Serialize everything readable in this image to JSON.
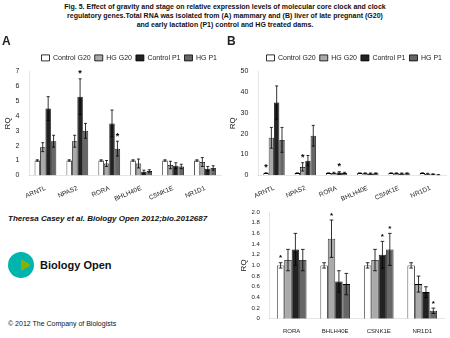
{
  "title": [
    "Fig. 5. Effect of gravity and stage on relative expression levels of molecular core clock and clock",
    "regulatory genes.Total RNA was isolated from (A) mammary and (B) liver of late pregnant (G20)",
    "and early lactation (P1) control and HG treated dams."
  ],
  "annotations": [
    "Theresa Casey et al. Biology Open 2012;bio.2012687",
    "Biology Open",
    "© 2012 The Company of Biologists"
  ],
  "chart_data": [
    {
      "type": "bar",
      "title": "A",
      "ylabel": "RQ",
      "categories": [
        "ARNTL",
        "NPAS2",
        "RORA",
        "BHLH40E",
        "CSNK1E",
        "NR1D1"
      ],
      "ylim": [
        0,
        7
      ],
      "yticks": [
        0,
        1,
        2,
        3,
        4,
        5,
        6,
        7
      ],
      "grid": false,
      "legend": "upper right",
      "series": [
        {
          "name": "Control G20",
          "color": "#ffffff",
          "values": [
            1.0,
            1.0,
            1.0,
            1.0,
            1.0,
            1.0
          ],
          "errors": [
            0.05,
            0.05,
            0.05,
            0.05,
            0.05,
            0.05
          ]
        },
        {
          "name": "HG G20",
          "color": "#aaaaaa",
          "values": [
            1.9,
            2.3,
            0.8,
            0.8,
            0.7,
            0.9
          ],
          "errors": [
            0.3,
            0.4,
            0.2,
            0.3,
            0.25,
            0.3
          ]
        },
        {
          "name": "Control P1",
          "color": "#222222",
          "values": [
            4.5,
            5.3,
            3.5,
            0.25,
            0.65,
            0.45
          ],
          "errors": [
            0.8,
            1.2,
            0.9,
            0.1,
            0.2,
            0.15
          ],
          "stars": [
            null,
            "*",
            null,
            null,
            null,
            null
          ]
        },
        {
          "name": "HG P1",
          "color": "#666666",
          "values": [
            2.3,
            3.0,
            1.8,
            0.3,
            0.6,
            0.5
          ],
          "errors": [
            0.4,
            0.5,
            0.5,
            0.08,
            0.15,
            0.15
          ],
          "stars": [
            null,
            null,
            "*",
            null,
            null,
            null
          ]
        }
      ]
    },
    {
      "type": "bar",
      "title": "B",
      "ylabel": "RQ",
      "categories": [
        "ARNTL",
        "NPAS2",
        "RORA",
        "BHLH40E",
        "CSNK1E",
        "NR1D1"
      ],
      "ylim": [
        0,
        50
      ],
      "yticks": [
        0,
        10,
        20,
        30,
        40,
        50
      ],
      "grid": false,
      "legend": "upper right",
      "series": [
        {
          "name": "Control G20",
          "color": "#ffffff",
          "values": [
            1.0,
            1.0,
            1.0,
            1.0,
            1.0,
            1.0
          ],
          "errors": [
            0.05,
            0.05,
            0.05,
            0.05,
            0.05,
            0.05
          ],
          "stars": [
            "*",
            null,
            null,
            null,
            null,
            null
          ]
        },
        {
          "name": "HG G20",
          "color": "#aaaaaa",
          "values": [
            18.0,
            4.0,
            1.1,
            0.9,
            0.9,
            0.7
          ],
          "errors": [
            5.0,
            2.0,
            0.3,
            0.2,
            0.2,
            0.2
          ],
          "stars": [
            null,
            "*",
            null,
            null,
            null,
            null
          ]
        },
        {
          "name": "Control P1",
          "color": "#222222",
          "values": [
            35.0,
            7.0,
            1.3,
            0.8,
            0.85,
            0.5
          ],
          "errors": [
            8.0,
            2.5,
            0.4,
            0.25,
            0.2,
            0.15
          ],
          "stars": [
            null,
            null,
            "*",
            null,
            null,
            null
          ]
        },
        {
          "name": "HG P1",
          "color": "#666666",
          "values": [
            17.0,
            19.0,
            1.1,
            0.9,
            0.9,
            0.15
          ],
          "errors": [
            6.0,
            5.0,
            0.3,
            0.2,
            0.2,
            0.05
          ]
        }
      ]
    },
    {
      "type": "bar",
      "ylabel": "RQ",
      "categories": [
        "RORA",
        "BHLH40E",
        "CSNK1E",
        "NR1D1"
      ],
      "ylim": [
        0,
        2.0
      ],
      "yticks": [
        0,
        0.2,
        0.4,
        0.6,
        0.8,
        {
          "value": 1.0,
          "label": "1.0"
        },
        1.2,
        1.4,
        1.6,
        1.8,
        {
          "value": 2.0,
          "label": "2.0"
        }
      ],
      "grid": false,
      "series": [
        {
          "color": "#ffffff",
          "values": [
            1.0,
            1.0,
            1.0,
            1.0
          ],
          "errors": [
            0.05,
            0.05,
            0.05,
            0.05
          ],
          "stars": [
            "*",
            null,
            null,
            null
          ]
        },
        {
          "color": "#aaaaaa",
          "values": [
            1.1,
            1.5,
            1.1,
            0.65
          ],
          "errors": [
            0.2,
            0.35,
            0.2,
            0.15
          ],
          "stars": [
            null,
            "*",
            null,
            null
          ]
        },
        {
          "color": "#222222",
          "values": [
            1.3,
            0.7,
            1.2,
            0.5
          ],
          "errors": [
            0.3,
            0.2,
            0.25,
            0.1
          ],
          "stars": [
            null,
            null,
            "*",
            null
          ]
        },
        {
          "color": "#666666",
          "values": [
            1.1,
            0.65,
            1.3,
            0.15
          ],
          "errors": [
            0.2,
            0.2,
            0.3,
            0.05
          ],
          "stars": [
            null,
            null,
            "*",
            "*"
          ]
        }
      ]
    }
  ]
}
